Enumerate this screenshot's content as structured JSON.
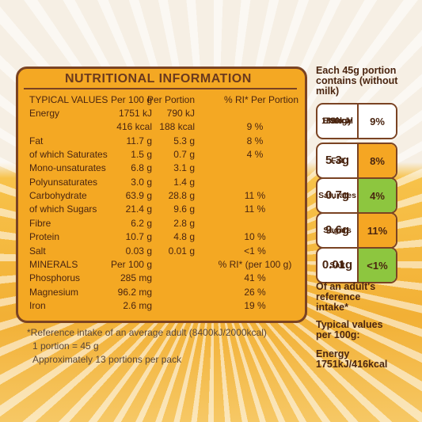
{
  "title": "NUTRITIONAL INFORMATION",
  "table": {
    "header": {
      "label": "TYPICAL VALUES",
      "per_100g": "Per 100 g",
      "per_portion": "Per Portion",
      "ri": "% RI* Per Portion"
    },
    "rows": [
      {
        "label": "Energy",
        "per_100g": "1751 kJ",
        "per_portion": "790 kJ"
      },
      {
        "per_100g": "416 kcal",
        "per_portion": "188 kcal",
        "ri": "9 %"
      },
      {
        "label": "Fat",
        "per_100g": "11.7 g",
        "per_portion": "5.3 g",
        "ri": "8 %"
      },
      {
        "label": "of which Saturates",
        "per_100g": "1.5 g",
        "per_portion": "0.7 g",
        "ri": "4 %"
      },
      {
        "label": "Mono-unsaturates",
        "per_100g": "6.8 g",
        "per_portion": "3.1 g"
      },
      {
        "label": "Polyunsaturates",
        "per_100g": "3.0 g",
        "per_portion": "1.4 g"
      },
      {
        "label": "Carbohydrate",
        "per_100g": "63.9 g",
        "per_portion": "28.8 g",
        "ri": "11 %"
      },
      {
        "label": "of which Sugars",
        "per_100g": "21.4 g",
        "per_portion": "9.6 g",
        "ri": "11 %"
      },
      {
        "label": "Fibre",
        "per_100g": "6.2 g",
        "per_portion": "2.8 g"
      },
      {
        "label": "Protein",
        "per_100g": "10.7 g",
        "per_portion": "4.8 g",
        "ri": "10 %"
      },
      {
        "label": "Salt",
        "per_100g": "0.03 g",
        "per_portion": "0.01 g",
        "ri": "<1 %"
      },
      {
        "label": "MINERALS",
        "per_100g": "Per 100 g",
        "ri": "% RI* (per 100 g)",
        "bold": true
      },
      {
        "label": "Phosphorus",
        "per_100g": "285 mg",
        "ri": "41 %"
      },
      {
        "label": "Magnesium",
        "per_100g": "96.2 mg",
        "ri": "26 %"
      },
      {
        "label": "Iron",
        "per_100g": "2.6 mg",
        "ri": "19 %"
      }
    ]
  },
  "footnotes": [
    "*Reference intake of an average adult (8400kJ/2000kcal)",
    "1 portion = 45 g",
    "Approximately 13 portions per pack"
  ],
  "side": {
    "intro": "Each 45g portion contains (without milk)",
    "lights": [
      {
        "lines": [
          "Energy",
          "790kJ",
          "188kcal"
        ],
        "percent": "9%",
        "color": "#ffffff"
      },
      {
        "lines": [
          "Fat",
          "5.3g"
        ],
        "percent": "8%",
        "color": "#f5a623"
      },
      {
        "lines": [
          "Saturates",
          "0.7g"
        ],
        "percent": "4%",
        "color": "#8dc63f"
      },
      {
        "lines": [
          "Sugars",
          "9.6g"
        ],
        "percent": "11%",
        "color": "#f5a623"
      },
      {
        "lines": [
          "Salt",
          "0.01g"
        ],
        "percent": "<1%",
        "color": "#8dc63f"
      }
    ],
    "outro": [
      "Of an adult's reference intake*",
      "Typical values per 100g:",
      "Energy 1751kJ/416kcal"
    ]
  }
}
